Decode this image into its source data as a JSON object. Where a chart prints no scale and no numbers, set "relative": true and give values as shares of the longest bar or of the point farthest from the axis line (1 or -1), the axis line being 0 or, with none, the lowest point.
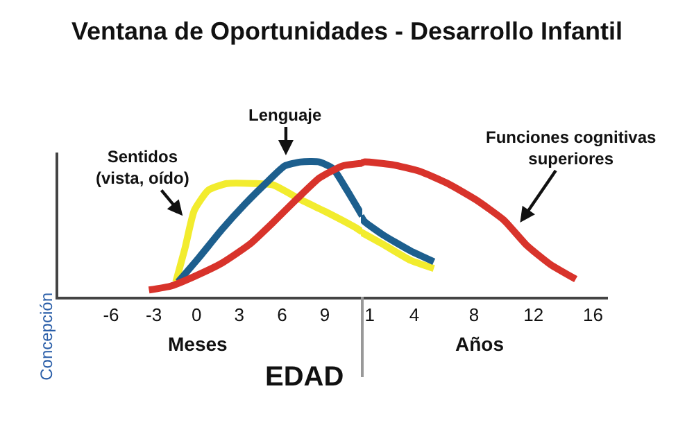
{
  "chart_data": [
    {
      "type": "line",
      "relative": true,
      "title": "Ventana de Oportunidades - Desarrollo Infantil",
      "xlim": [
        -9.7,
        11.63
      ],
      "xticks": [
        -6,
        -3,
        0,
        3,
        6,
        9
      ],
      "series": [
        {
          "color": "#f2ec2e",
          "x": [
            -1.45,
            -0.81,
            -0.16,
            0.82,
            2.12,
            4.06,
            5.36,
            7.31,
            9.26,
            11.21,
            11.63
          ],
          "values": [
            0.11,
            0.36,
            0.64,
            0.79,
            0.84,
            0.84,
            0.83,
            0.72,
            0.62,
            0.51,
            0.48
          ]
        },
        {
          "color": "#1d5f8e",
          "x": [
            -1.29,
            0.17,
            1.79,
            3.42,
            5.04,
            6.18,
            7.31,
            8.61,
            9.58,
            10.56,
            11.63
          ],
          "values": [
            0.11,
            0.29,
            0.5,
            0.69,
            0.86,
            0.97,
            1.0,
            1.0,
            0.95,
            0.79,
            0.6
          ]
        },
        {
          "color": "#d8332b",
          "x": [
            -3.34,
            -1.78,
            -0.16,
            1.79,
            3.74,
            5.36,
            6.99,
            8.61,
            10.23,
            11.63
          ],
          "values": [
            0.05,
            0.08,
            0.15,
            0.25,
            0.39,
            0.55,
            0.72,
            0.88,
            0.97,
            0.99
          ]
        }
      ],
      "annotations": [
        "Sentidos\n(vista, oído)",
        "Lenguaje",
        "Meses",
        "EDAD",
        "Concepción"
      ],
      "grid": false,
      "marker": "none",
      "line_style": "solid"
    },
    {
      "type": "line",
      "relative": true,
      "xlim": [
        0.41,
        17.0
      ],
      "xticks": [
        1,
        4,
        8,
        12,
        16
      ],
      "series": [
        {
          "color": "#f2ec2e",
          "x": [
            0.41,
            1.88,
            3.75,
            5.31
          ],
          "values": [
            0.48,
            0.39,
            0.27,
            0.21
          ]
        },
        {
          "color": "#1d5f8e",
          "x": [
            0.41,
            0.63,
            1.88,
            3.75,
            5.31
          ],
          "values": [
            0.6,
            0.56,
            0.46,
            0.34,
            0.26
          ]
        },
        {
          "color": "#d8332b",
          "x": [
            0.41,
            0.63,
            2.5,
            4.38,
            6.25,
            8.13,
            10.0,
            11.56,
            13.13,
            14.84
          ],
          "values": [
            0.99,
            1.0,
            0.98,
            0.93,
            0.84,
            0.72,
            0.57,
            0.38,
            0.24,
            0.13
          ]
        }
      ],
      "annotations": [
        "Funciones cognitivas\nsuperiores",
        "Años"
      ],
      "grid": false,
      "marker": "none",
      "line_style": "solid"
    }
  ]
}
